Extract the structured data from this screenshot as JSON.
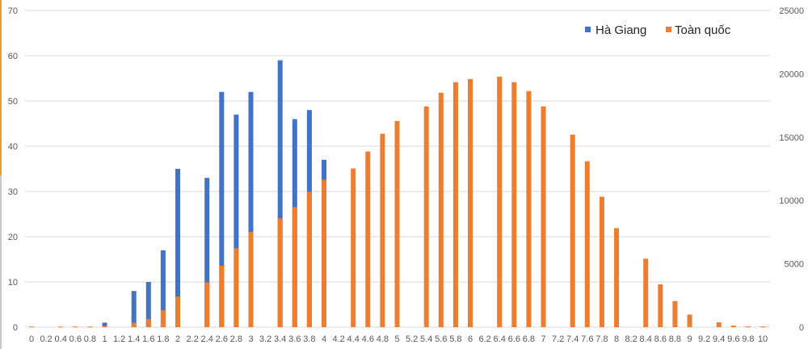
{
  "chart_data": {
    "type": "bar",
    "categories": [
      "0",
      "0.2",
      "0.4",
      "0.6",
      "0.8",
      "1",
      "1.2",
      "1.4",
      "1.6",
      "1.8",
      "2",
      "2.2",
      "2.4",
      "2.6",
      "2.8",
      "3",
      "3.2",
      "3.4",
      "3.6",
      "3.8",
      "4",
      "4.2",
      "4.4",
      "4.6",
      "4.8",
      "5",
      "5.2",
      "5.4",
      "5.6",
      "5.8",
      "6",
      "6.2",
      "6.4",
      "6.6",
      "6.8",
      "7",
      "7.2",
      "7.4",
      "7.6",
      "7.8",
      "8",
      "8.2",
      "8.4",
      "8.6",
      "8.8",
      "9",
      "9.2",
      "9.4",
      "9.6",
      "9.8",
      "10"
    ],
    "series": [
      {
        "name": "Hà Giang",
        "axis": "left",
        "color": "#4472c4",
        "values": [
          0,
          0,
          0,
          0,
          0,
          1,
          0,
          8,
          10,
          17,
          35,
          0,
          33,
          52,
          47,
          52,
          0,
          59,
          46,
          48,
          37,
          0,
          0,
          0,
          0,
          0,
          0,
          0,
          0,
          0,
          0,
          0,
          0,
          0,
          0,
          0,
          0,
          0,
          0,
          0,
          0,
          0,
          0,
          0,
          0,
          0,
          0,
          0,
          0,
          0,
          0
        ]
      },
      {
        "name": "Toàn quốc",
        "axis": "right",
        "color": "#ed7d31",
        "values": [
          50,
          0,
          50,
          50,
          50,
          100,
          0,
          360,
          640,
          1340,
          2420,
          0,
          3540,
          4850,
          6230,
          7530,
          0,
          8590,
          9480,
          10690,
          11640,
          0,
          12530,
          13870,
          15270,
          16280,
          0,
          17430,
          18510,
          19340,
          19590,
          0,
          19780,
          19340,
          18640,
          17430,
          0,
          15200,
          13100,
          10300,
          7820,
          0,
          5410,
          3390,
          2060,
          1000,
          0,
          380,
          130,
          60,
          60
        ]
      }
    ],
    "left_axis": {
      "ylim": [
        0,
        70
      ],
      "ticks": [
        "0",
        "10",
        "20",
        "30",
        "40",
        "50",
        "60",
        "70"
      ]
    },
    "right_axis": {
      "ylim": [
        0,
        25000
      ],
      "ticks": [
        "0",
        "5000",
        "10000",
        "15000",
        "20000",
        "25000"
      ]
    },
    "grid": true,
    "legend_placement": "top-right",
    "xlabel": "",
    "ylabel": "",
    "title": ""
  }
}
